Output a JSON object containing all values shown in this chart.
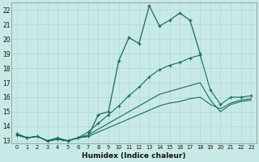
{
  "xlabel": "Humidex (Indice chaleur)",
  "background_color": "#c8eae6",
  "grid_color": "#b0d8d4",
  "line_color": "#1a6b5a",
  "xlim": [
    -0.5,
    23.5
  ],
  "ylim": [
    12.8,
    22.5
  ],
  "xticks": [
    0,
    1,
    2,
    3,
    4,
    5,
    6,
    7,
    8,
    9,
    10,
    11,
    12,
    13,
    14,
    15,
    16,
    17,
    18,
    19,
    20,
    21,
    22,
    23
  ],
  "yticks": [
    13,
    14,
    15,
    16,
    17,
    18,
    19,
    20,
    21,
    22
  ],
  "series1_x": [
    0,
    1,
    2,
    3,
    4,
    5,
    6,
    7,
    8,
    9,
    10,
    11,
    12,
    13,
    14,
    15,
    16,
    17,
    18
  ],
  "series1_y": [
    13.5,
    13.2,
    13.3,
    13.0,
    13.2,
    13.0,
    13.2,
    13.3,
    14.8,
    15.0,
    18.5,
    20.1,
    19.7,
    22.3,
    20.9,
    21.3,
    21.8,
    21.3,
    19.0
  ],
  "series2_x": [
    0,
    1,
    2,
    3,
    4,
    5,
    6,
    7,
    8,
    9,
    10,
    11,
    12,
    13,
    14,
    15,
    16,
    17,
    18,
    19,
    20,
    21,
    22,
    23
  ],
  "series2_y": [
    13.4,
    13.2,
    13.3,
    13.0,
    13.1,
    13.0,
    13.2,
    13.6,
    14.2,
    14.8,
    15.4,
    16.1,
    16.7,
    17.4,
    17.9,
    18.2,
    18.4,
    18.7,
    18.9,
    16.5,
    15.5,
    16.0,
    16.0,
    16.1
  ],
  "series3_x": [
    0,
    1,
    2,
    3,
    4,
    5,
    6,
    7,
    8,
    9,
    10,
    11,
    12,
    13,
    14,
    15,
    16,
    17,
    18,
    19,
    20,
    21,
    22,
    23
  ],
  "series3_y": [
    13.4,
    13.2,
    13.3,
    13.0,
    13.1,
    13.0,
    13.2,
    13.4,
    13.8,
    14.2,
    14.6,
    15.0,
    15.4,
    15.8,
    16.2,
    16.4,
    16.6,
    16.8,
    17.0,
    15.8,
    15.0,
    15.5,
    15.7,
    15.8
  ],
  "series4_x": [
    0,
    1,
    2,
    3,
    4,
    5,
    6,
    7,
    8,
    9,
    10,
    11,
    12,
    13,
    14,
    15,
    16,
    17,
    18,
    19,
    20,
    21,
    22,
    23
  ],
  "series4_y": [
    13.4,
    13.2,
    13.3,
    13.0,
    13.1,
    13.0,
    13.2,
    13.3,
    13.6,
    13.9,
    14.2,
    14.5,
    14.8,
    15.1,
    15.4,
    15.6,
    15.7,
    15.9,
    16.0,
    15.5,
    15.2,
    15.6,
    15.8,
    15.9
  ]
}
